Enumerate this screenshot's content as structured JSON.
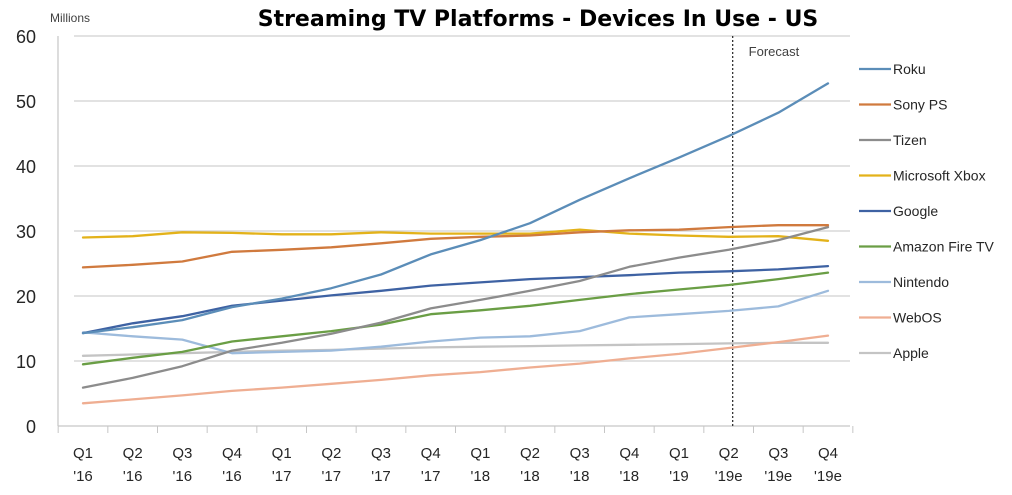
{
  "chart_data": {
    "type": "line",
    "title": "Streaming TV Platforms - Devices In Use - US",
    "ylabel": "Millions",
    "xlabel": "",
    "ylim": [
      0,
      60
    ],
    "yticks": [
      0,
      10,
      20,
      30,
      40,
      50,
      60
    ],
    "grid": true,
    "legend_position": "right",
    "categories": [
      [
        "Q1",
        "'16"
      ],
      [
        "Q2",
        "'16"
      ],
      [
        "Q3",
        "'16"
      ],
      [
        "Q4",
        "'16"
      ],
      [
        "Q1",
        "'17"
      ],
      [
        "Q2",
        "'17"
      ],
      [
        "Q3",
        "'17"
      ],
      [
        "Q4",
        "'17"
      ],
      [
        "Q1",
        "'18"
      ],
      [
        "Q2",
        "'18"
      ],
      [
        "Q3",
        "'18"
      ],
      [
        "Q4",
        "'18"
      ],
      [
        "Q1",
        "'19"
      ],
      [
        "Q2",
        "'19e"
      ],
      [
        "Q3",
        "'19e"
      ],
      [
        "Q4",
        "'19e"
      ]
    ],
    "annotations": [
      {
        "text": "Forecast",
        "divider_after_category_index": 13,
        "style": "dotted-vertical-line"
      }
    ],
    "series": [
      {
        "name": "Roku",
        "color": "#5b8db8",
        "values": [
          14.3,
          15.2,
          16.3,
          18.3,
          19.6,
          21.2,
          23.3,
          26.4,
          28.6,
          31.2,
          34.8,
          38.1,
          41.3,
          44.6,
          48.2,
          52.7
        ]
      },
      {
        "name": "Sony PS",
        "color": "#d07a3e",
        "values": [
          24.4,
          24.8,
          25.3,
          26.8,
          27.1,
          27.5,
          28.1,
          28.8,
          29.1,
          29.3,
          29.8,
          30.1,
          30.2,
          30.6,
          30.9,
          30.9
        ]
      },
      {
        "name": "Tizen",
        "color": "#8c8c8c",
        "values": [
          5.9,
          7.4,
          9.2,
          11.6,
          12.8,
          14.2,
          15.9,
          18.1,
          19.4,
          20.8,
          22.3,
          24.5,
          25.9,
          27.1,
          28.6,
          30.6
        ]
      },
      {
        "name": "Microsoft Xbox",
        "color": "#e3b21a",
        "values": [
          29.0,
          29.2,
          29.8,
          29.7,
          29.5,
          29.5,
          29.8,
          29.6,
          29.6,
          29.6,
          30.2,
          29.6,
          29.3,
          29.1,
          29.2,
          28.5
        ]
      },
      {
        "name": "Google",
        "color": "#3e62a3",
        "values": [
          14.3,
          15.8,
          16.9,
          18.5,
          19.3,
          20.1,
          20.8,
          21.6,
          22.1,
          22.6,
          22.9,
          23.2,
          23.6,
          23.8,
          24.1,
          24.6
        ]
      },
      {
        "name": "Amazon Fire TV",
        "color": "#6a9e45",
        "values": [
          9.5,
          10.5,
          11.4,
          13.0,
          13.8,
          14.6,
          15.6,
          17.2,
          17.8,
          18.5,
          19.4,
          20.3,
          21.0,
          21.7,
          22.6,
          23.6
        ]
      },
      {
        "name": "Nintendo",
        "color": "#9dbbdc",
        "values": [
          14.4,
          13.8,
          13.3,
          11.2,
          11.4,
          11.6,
          12.2,
          13.0,
          13.6,
          13.8,
          14.6,
          16.7,
          17.2,
          17.7,
          18.4,
          20.8
        ]
      },
      {
        "name": "WebOS",
        "color": "#efae92",
        "values": [
          3.5,
          4.1,
          4.7,
          5.4,
          5.9,
          6.5,
          7.1,
          7.8,
          8.3,
          9.0,
          9.6,
          10.4,
          11.1,
          12.0,
          12.9,
          13.9
        ]
      },
      {
        "name": "Apple",
        "color": "#c4c4c4",
        "values": [
          10.8,
          11.0,
          11.2,
          11.4,
          11.6,
          11.7,
          11.9,
          12.1,
          12.2,
          12.3,
          12.4,
          12.5,
          12.6,
          12.7,
          12.8,
          12.8
        ]
      }
    ]
  }
}
